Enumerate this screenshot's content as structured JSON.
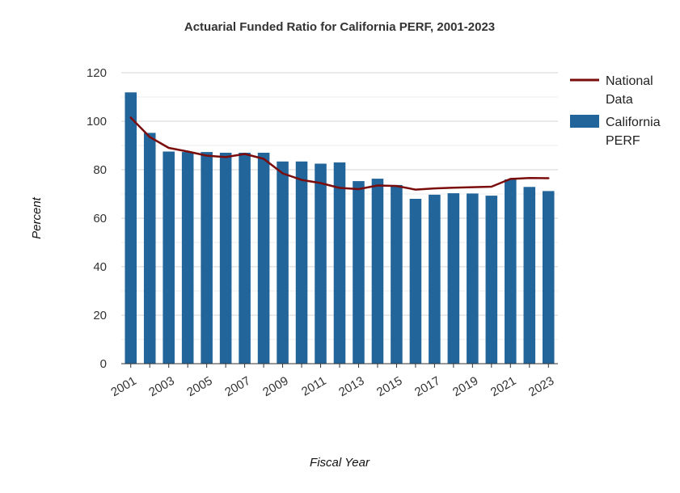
{
  "chart_data": {
    "type": "bar",
    "title": "Actuarial Funded Ratio for California PERF, 2001-2023",
    "xlabel": "Fiscal Year",
    "ylabel": "Percent",
    "ylim": [
      0,
      120
    ],
    "yticks": [
      0,
      20,
      40,
      60,
      80,
      100,
      120
    ],
    "categories": [
      "2001",
      "2002",
      "2003",
      "2004",
      "2005",
      "2006",
      "2007",
      "2008",
      "2009",
      "2010",
      "2011",
      "2012",
      "2013",
      "2014",
      "2015",
      "2016",
      "2017",
      "2018",
      "2019",
      "2020",
      "2021",
      "2022",
      "2023"
    ],
    "xtick_labels": [
      "2001",
      "2003",
      "2005",
      "2007",
      "2009",
      "2011",
      "2013",
      "2015",
      "2017",
      "2019",
      "2021",
      "2023"
    ],
    "series": [
      {
        "name": "California PERF",
        "type": "bar",
        "color": "#22659b",
        "values": [
          111.9,
          95.2,
          87.5,
          87.3,
          87.3,
          87.0,
          87.0,
          87.0,
          83.4,
          83.4,
          82.5,
          83.0,
          75.3,
          76.3,
          73.7,
          68.0,
          69.7,
          70.3,
          70.2,
          69.3,
          76.0,
          72.9,
          71.2
        ]
      },
      {
        "name": "National Data",
        "type": "line",
        "color": "#7a0c0c",
        "values": [
          101.5,
          93.5,
          89.0,
          87.5,
          85.8,
          85.2,
          86.5,
          84.5,
          78.5,
          75.8,
          74.5,
          72.5,
          72.0,
          73.5,
          73.3,
          71.8,
          72.3,
          72.6,
          72.8,
          73.0,
          76.2,
          76.6,
          76.5
        ]
      }
    ],
    "legend": {
      "position": "right",
      "entries": [
        {
          "line1": "National",
          "line2": "Data"
        },
        {
          "line1": "California",
          "line2": "PERF"
        }
      ]
    },
    "grid": true
  }
}
